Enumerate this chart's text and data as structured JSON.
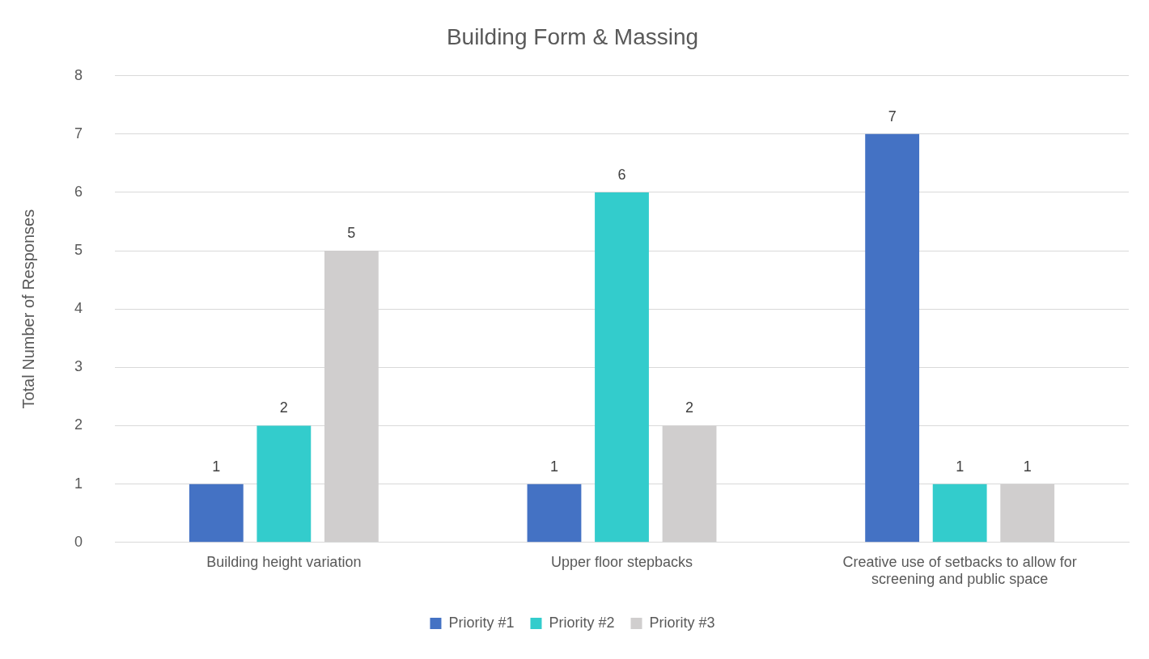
{
  "chart_data": {
    "type": "bar",
    "title": "Building Form & Massing",
    "ylabel": "Total Number of Responses",
    "categories": [
      "Building height variation",
      "Upper floor stepbacks",
      "Creative use of setbacks to allow for screening and public space"
    ],
    "series": [
      {
        "name": "Priority #1",
        "color": "#4472c4",
        "values": [
          1,
          1,
          7
        ]
      },
      {
        "name": "Priority #2",
        "color": "#33cccc",
        "values": [
          2,
          6,
          1
        ]
      },
      {
        "name": "Priority #3",
        "color": "#d0cece",
        "values": [
          5,
          2,
          1
        ]
      }
    ],
    "ylim": [
      0,
      8
    ],
    "yticks": [
      0,
      1,
      2,
      3,
      4,
      5,
      6,
      7,
      8
    ],
    "grid": "y",
    "legend": "bottom",
    "data_labels": true
  }
}
